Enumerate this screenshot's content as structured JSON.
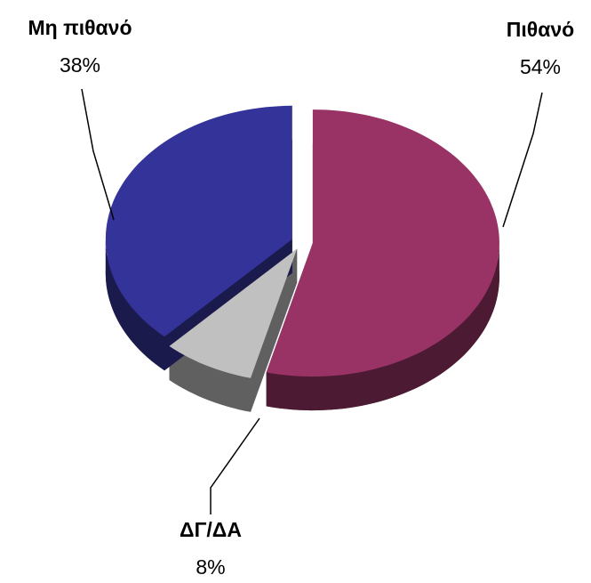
{
  "chart_data": {
    "type": "pie",
    "categories": [
      "Πιθανό",
      "ΔΓ/ΔΑ",
      "Μη πιθανό"
    ],
    "values": [
      54,
      8,
      38
    ],
    "value_labels": [
      "54%",
      "8%",
      "38%"
    ],
    "colors": [
      "#993366",
      "#c0c0c0",
      "#333399"
    ]
  }
}
